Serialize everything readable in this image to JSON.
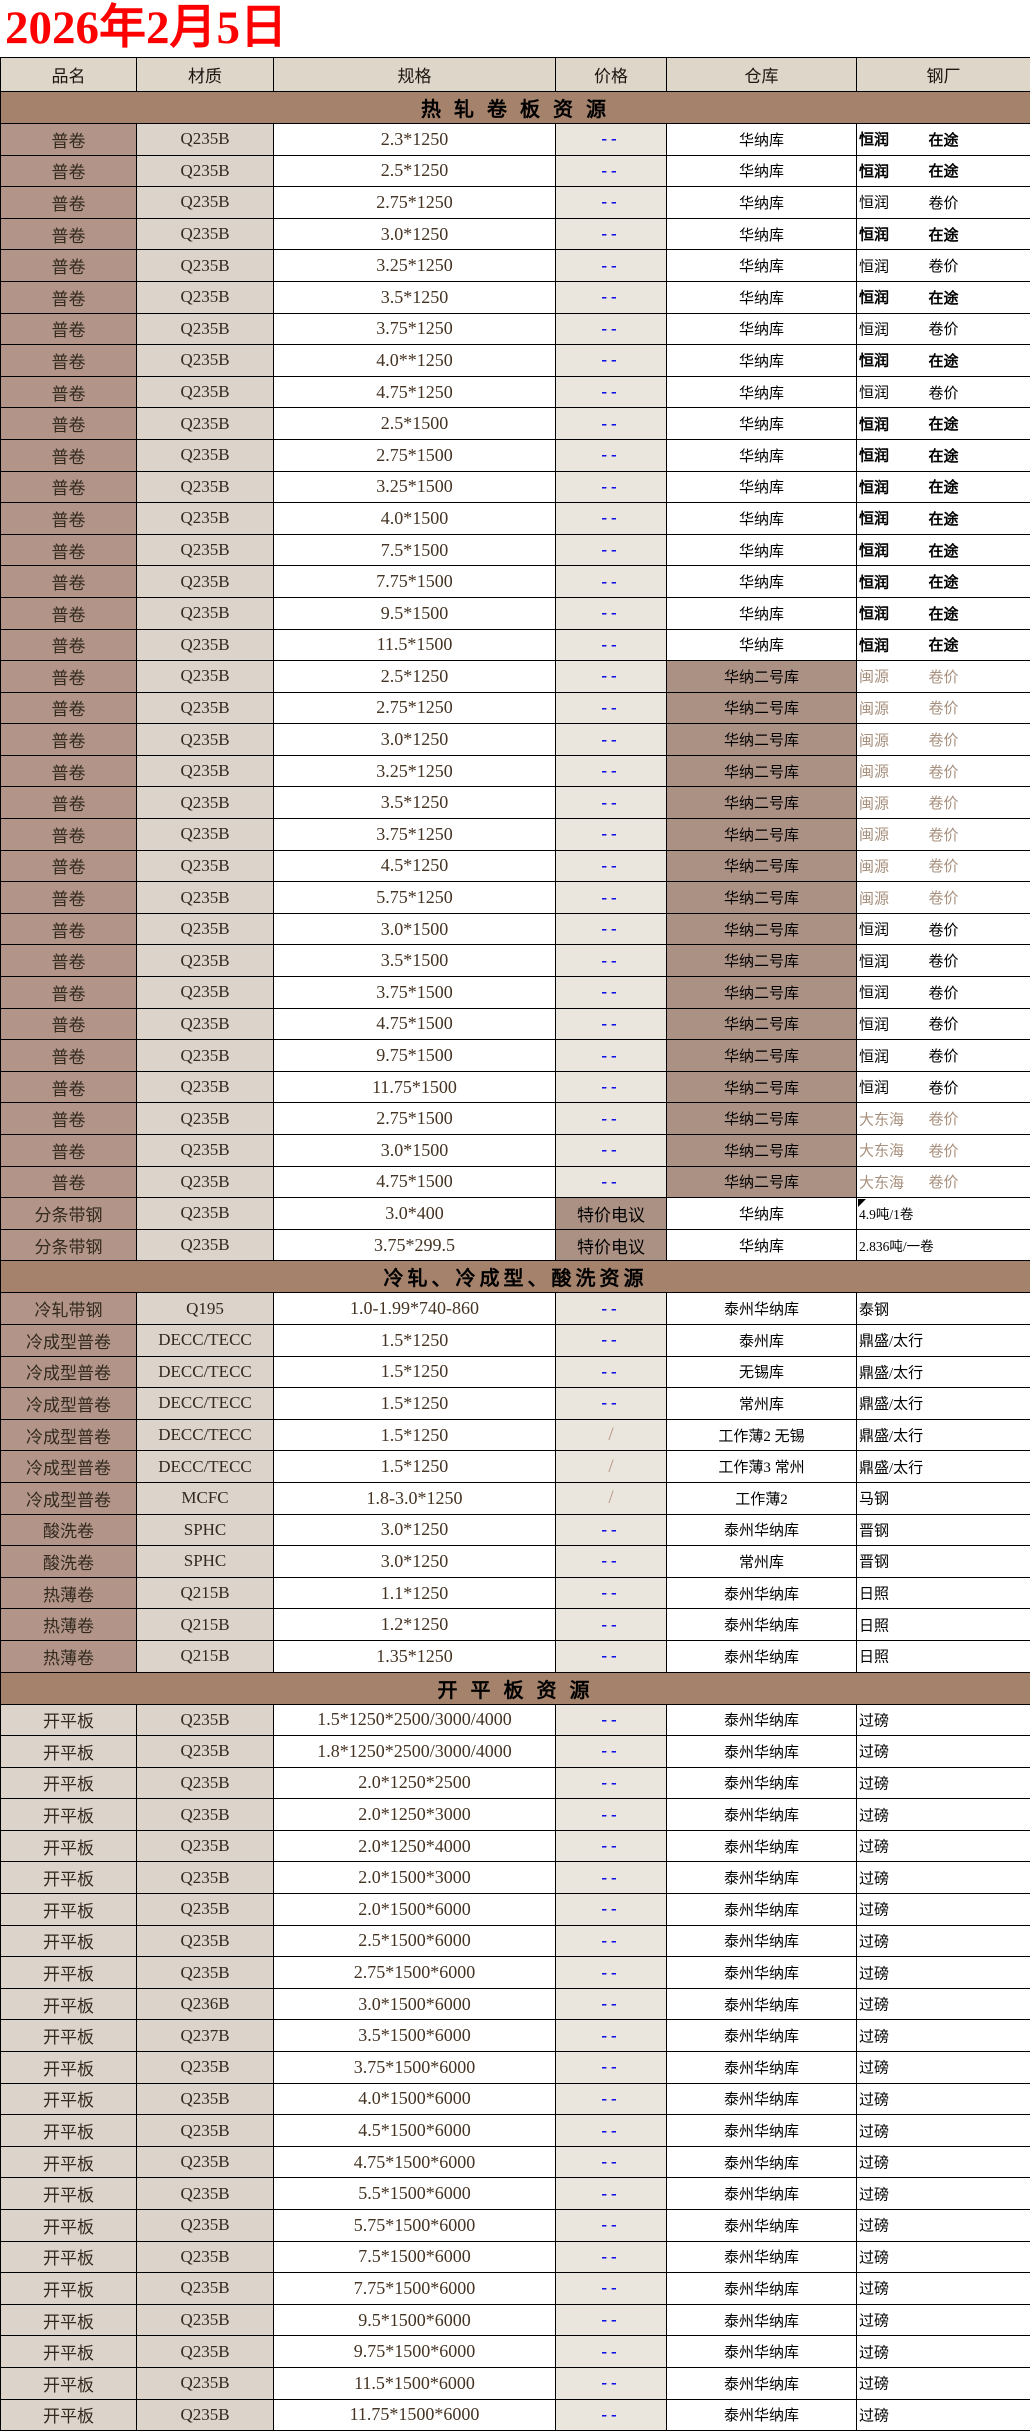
{
  "title": "2026年2月5日",
  "colors": {
    "title_red": "#fe0000",
    "dash_blue": "#0000e6",
    "section_header_bg": "#a5826b",
    "column_header_bg": "#ded6c9",
    "product_cell_brown": "#b29588",
    "material_cell_beige": "#dcd3ca",
    "price_cell_beige": "#eae6dd",
    "warehouse_dark_brown": "#ab9183",
    "light_mill_text": "#a8907e"
  },
  "columns": [
    "品名",
    "材质",
    "规格",
    "价格",
    "仓库",
    "钢厂"
  ],
  "sections": [
    {
      "header": "热 轧 卷 板 资 源",
      "rows": [
        {
          "name": "普卷",
          "grade": "Q235B",
          "spec": "2.3*1250",
          "price": "--",
          "wh": "华纳库",
          "mill": "恒润",
          "tag": "在途",
          "bold": true
        },
        {
          "name": "普卷",
          "grade": "Q235B",
          "spec": "2.5*1250",
          "price": "--",
          "wh": "华纳库",
          "mill": "恒润",
          "tag": "在途",
          "bold": true
        },
        {
          "name": "普卷",
          "grade": "Q235B",
          "spec": "2.75*1250",
          "price": "--",
          "wh": "华纳库",
          "mill": "恒润",
          "tag": "卷价"
        },
        {
          "name": "普卷",
          "grade": "Q235B",
          "spec": "3.0*1250",
          "price": "--",
          "wh": "华纳库",
          "mill": "恒润",
          "tag": "在途",
          "bold": true
        },
        {
          "name": "普卷",
          "grade": "Q235B",
          "spec": "3.25*1250",
          "price": "--",
          "wh": "华纳库",
          "mill": "恒润",
          "tag": "卷价"
        },
        {
          "name": "普卷",
          "grade": "Q235B",
          "spec": "3.5*1250",
          "price": "--",
          "wh": "华纳库",
          "mill": "恒润",
          "tag": "在途",
          "bold": true
        },
        {
          "name": "普卷",
          "grade": "Q235B",
          "spec": "3.75*1250",
          "price": "--",
          "wh": "华纳库",
          "mill": "恒润",
          "tag": "卷价"
        },
        {
          "name": "普卷",
          "grade": "Q235B",
          "spec": "4.0**1250",
          "price": "--",
          "wh": "华纳库",
          "mill": "恒润",
          "tag": "在途",
          "bold": true
        },
        {
          "name": "普卷",
          "grade": "Q235B",
          "spec": "4.75*1250",
          "price": "--",
          "wh": "华纳库",
          "mill": "恒润",
          "tag": "卷价"
        },
        {
          "name": "普卷",
          "grade": "Q235B",
          "spec": "2.5*1500",
          "price": "--",
          "wh": "华纳库",
          "mill": "恒润",
          "tag": "在途",
          "bold": true
        },
        {
          "name": "普卷",
          "grade": "Q235B",
          "spec": "2.75*1500",
          "price": "--",
          "wh": "华纳库",
          "mill": "恒润",
          "tag": "在途",
          "bold": true
        },
        {
          "name": "普卷",
          "grade": "Q235B",
          "spec": "3.25*1500",
          "price": "--",
          "wh": "华纳库",
          "mill": "恒润",
          "tag": "在途",
          "bold": true
        },
        {
          "name": "普卷",
          "grade": "Q235B",
          "spec": "4.0*1500",
          "price": "--",
          "wh": "华纳库",
          "mill": "恒润",
          "tag": "在途",
          "bold": true
        },
        {
          "name": "普卷",
          "grade": "Q235B",
          "spec": "7.5*1500",
          "price": "--",
          "wh": "华纳库",
          "mill": "恒润",
          "tag": "在途",
          "bold": true
        },
        {
          "name": "普卷",
          "grade": "Q235B",
          "spec": "7.75*1500",
          "price": "--",
          "wh": "华纳库",
          "mill": "恒润",
          "tag": "在途",
          "bold": true
        },
        {
          "name": "普卷",
          "grade": "Q235B",
          "spec": "9.5*1500",
          "price": "--",
          "wh": "华纳库",
          "mill": "恒润",
          "tag": "在途",
          "bold": true
        },
        {
          "name": "普卷",
          "grade": "Q235B",
          "spec": "11.5*1500",
          "price": "--",
          "wh": "华纳库",
          "mill": "恒润",
          "tag": "在途",
          "bold": true
        },
        {
          "name": "普卷",
          "grade": "Q235B",
          "spec": "2.5*1250",
          "price": "--",
          "wh": "华纳二号库",
          "dark": true,
          "mill": "闽源",
          "tag": "卷价",
          "light": true
        },
        {
          "name": "普卷",
          "grade": "Q235B",
          "spec": "2.75*1250",
          "price": "--",
          "wh": "华纳二号库",
          "dark": true,
          "mill": "闽源",
          "tag": "卷价",
          "light": true
        },
        {
          "name": "普卷",
          "grade": "Q235B",
          "spec": "3.0*1250",
          "price": "--",
          "wh": "华纳二号库",
          "dark": true,
          "mill": "闽源",
          "tag": "卷价",
          "light": true
        },
        {
          "name": "普卷",
          "grade": "Q235B",
          "spec": "3.25*1250",
          "price": "--",
          "wh": "华纳二号库",
          "dark": true,
          "mill": "闽源",
          "tag": "卷价",
          "light": true
        },
        {
          "name": "普卷",
          "grade": "Q235B",
          "spec": "3.5*1250",
          "price": "--",
          "wh": "华纳二号库",
          "dark": true,
          "mill": "闽源",
          "tag": "卷价",
          "light": true
        },
        {
          "name": "普卷",
          "grade": "Q235B",
          "spec": "3.75*1250",
          "price": "--",
          "wh": "华纳二号库",
          "dark": true,
          "mill": "闽源",
          "tag": "卷价",
          "light": true
        },
        {
          "name": "普卷",
          "grade": "Q235B",
          "spec": "4.5*1250",
          "price": "--",
          "wh": "华纳二号库",
          "dark": true,
          "mill": "闽源",
          "tag": "卷价",
          "light": true
        },
        {
          "name": "普卷",
          "grade": "Q235B",
          "spec": "5.75*1250",
          "price": "--",
          "wh": "华纳二号库",
          "dark": true,
          "mill": "闽源",
          "tag": "卷价",
          "light": true
        },
        {
          "name": "普卷",
          "grade": "Q235B",
          "spec": "3.0*1500",
          "price": "--",
          "wh": "华纳二号库",
          "dark": true,
          "mill": "恒润",
          "tag": "卷价"
        },
        {
          "name": "普卷",
          "grade": "Q235B",
          "spec": "3.5*1500",
          "price": "--",
          "wh": "华纳二号库",
          "dark": true,
          "mill": "恒润",
          "tag": "卷价"
        },
        {
          "name": "普卷",
          "grade": "Q235B",
          "spec": "3.75*1500",
          "price": "--",
          "wh": "华纳二号库",
          "dark": true,
          "mill": "恒润",
          "tag": "卷价"
        },
        {
          "name": "普卷",
          "grade": "Q235B",
          "spec": "4.75*1500",
          "price": "--",
          "wh": "华纳二号库",
          "dark": true,
          "mill": "恒润",
          "tag": "卷价"
        },
        {
          "name": "普卷",
          "grade": "Q235B",
          "spec": "9.75*1500",
          "price": "--",
          "wh": "华纳二号库",
          "dark": true,
          "mill": "恒润",
          "tag": "卷价"
        },
        {
          "name": "普卷",
          "grade": "Q235B",
          "spec": "11.75*1500",
          "price": "--",
          "wh": "华纳二号库",
          "dark": true,
          "mill": "恒润",
          "tag": "卷价"
        },
        {
          "name": "普卷",
          "grade": "Q235B",
          "spec": "2.75*1500",
          "price": "--",
          "wh": "华纳二号库",
          "dark": true,
          "mill": "大东海",
          "tag": "卷价",
          "light": true
        },
        {
          "name": "普卷",
          "grade": "Q235B",
          "spec": "3.0*1500",
          "price": "--",
          "wh": "华纳二号库",
          "dark": true,
          "mill": "大东海",
          "tag": "卷价",
          "light": true
        },
        {
          "name": "普卷",
          "grade": "Q235B",
          "spec": "4.75*1500",
          "price": "--",
          "wh": "华纳二号库",
          "dark": true,
          "mill": "大东海",
          "tag": "卷价",
          "light": true
        },
        {
          "name": "分条带钢",
          "grade": "Q235B",
          "spec": "3.0*400",
          "price": "特价电议",
          "wh": "华纳库",
          "mill": "4.9吨/1卷",
          "small": true,
          "corner": true
        },
        {
          "name": "分条带钢",
          "grade": "Q235B",
          "spec": "3.75*299.5",
          "price": "特价电议",
          "wh": "华纳库",
          "mill": "2.836吨/一卷",
          "small": true
        }
      ]
    },
    {
      "header": "冷轧、冷成型、酸洗资源",
      "rows": [
        {
          "name": "冷轧带钢",
          "grade": "Q195",
          "spec": "1.0-1.99*740-860",
          "price": "--",
          "wh": "泰州华纳库",
          "mill": "泰钢"
        },
        {
          "name": "冷成型普卷",
          "grade": "DECC/TECC",
          "spec": "1.5*1250",
          "price": "--",
          "wh": "泰州库",
          "mill": "鼎盛/太行"
        },
        {
          "name": "冷成型普卷",
          "grade": "DECC/TECC",
          "spec": "1.5*1250",
          "price": "--",
          "wh": "无锡库",
          "mill": "鼎盛/太行"
        },
        {
          "name": "冷成型普卷",
          "grade": "DECC/TECC",
          "spec": "1.5*1250",
          "price": "--",
          "wh": "常州库",
          "mill": "鼎盛/太行"
        },
        {
          "name": "冷成型普卷",
          "grade": "DECC/TECC",
          "spec": "1.5*1250",
          "price": "/",
          "wh": "工作薄2 无锡",
          "mill": "鼎盛/太行"
        },
        {
          "name": "冷成型普卷",
          "grade": "DECC/TECC",
          "spec": "1.5*1250",
          "price": "/",
          "wh": "工作薄3 常州",
          "mill": "鼎盛/太行"
        },
        {
          "name": "冷成型普卷",
          "grade": "MCFC",
          "spec": "1.8-3.0*1250",
          "price": "/",
          "wh": "工作薄2",
          "mill": "马钢"
        },
        {
          "name": "酸洗卷",
          "grade": "SPHC",
          "spec": "3.0*1250",
          "price": "--",
          "wh": "泰州华纳库",
          "mill": "晋钢"
        },
        {
          "name": "酸洗卷",
          "grade": "SPHC",
          "spec": "3.0*1250",
          "price": "--",
          "wh": "常州库",
          "mill": "晋钢"
        },
        {
          "name": "热薄卷",
          "grade": "Q215B",
          "spec": "1.1*1250",
          "price": "--",
          "wh": "泰州华纳库",
          "mill": "日照"
        },
        {
          "name": "热薄卷",
          "grade": "Q215B",
          "spec": "1.2*1250",
          "price": "--",
          "wh": "泰州华纳库",
          "mill": "日照"
        },
        {
          "name": "热薄卷",
          "grade": "Q215B",
          "spec": "1.35*1250",
          "price": "--",
          "wh": "泰州华纳库",
          "mill": "日照"
        }
      ]
    },
    {
      "header": "开 平 板 资 源",
      "light_name": true,
      "rows": [
        {
          "name": "开平板",
          "grade": "Q235B",
          "spec": "1.5*1250*2500/3000/4000",
          "price": "--",
          "wh": "泰州华纳库",
          "mill": "过磅"
        },
        {
          "name": "开平板",
          "grade": "Q235B",
          "spec": "1.8*1250*2500/3000/4000",
          "price": "--",
          "wh": "泰州华纳库",
          "mill": "过磅"
        },
        {
          "name": "开平板",
          "grade": "Q235B",
          "spec": "2.0*1250*2500",
          "price": "--",
          "wh": "泰州华纳库",
          "mill": "过磅"
        },
        {
          "name": "开平板",
          "grade": "Q235B",
          "spec": "2.0*1250*3000",
          "price": "--",
          "wh": "泰州华纳库",
          "mill": "过磅"
        },
        {
          "name": "开平板",
          "grade": "Q235B",
          "spec": "2.0*1250*4000",
          "price": "--",
          "wh": "泰州华纳库",
          "mill": "过磅"
        },
        {
          "name": "开平板",
          "grade": "Q235B",
          "spec": "2.0*1500*3000",
          "price": "--",
          "wh": "泰州华纳库",
          "mill": "过磅"
        },
        {
          "name": "开平板",
          "grade": "Q235B",
          "spec": "2.0*1500*6000",
          "price": "--",
          "wh": "泰州华纳库",
          "mill": "过磅"
        },
        {
          "name": "开平板",
          "grade": "Q235B",
          "spec": "2.5*1500*6000",
          "price": "--",
          "wh": "泰州华纳库",
          "mill": "过磅"
        },
        {
          "name": "开平板",
          "grade": "Q235B",
          "spec": "2.75*1500*6000",
          "price": "--",
          "wh": "泰州华纳库",
          "mill": "过磅"
        },
        {
          "name": "开平板",
          "grade": "Q236B",
          "spec": "3.0*1500*6000",
          "price": "--",
          "wh": "泰州华纳库",
          "mill": "过磅"
        },
        {
          "name": "开平板",
          "grade": "Q237B",
          "spec": "3.5*1500*6000",
          "price": "--",
          "wh": "泰州华纳库",
          "mill": "过磅"
        },
        {
          "name": "开平板",
          "grade": "Q235B",
          "spec": "3.75*1500*6000",
          "price": "--",
          "wh": "泰州华纳库",
          "mill": "过磅"
        },
        {
          "name": "开平板",
          "grade": "Q235B",
          "spec": "4.0*1500*6000",
          "price": "--",
          "wh": "泰州华纳库",
          "mill": "过磅"
        },
        {
          "name": "开平板",
          "grade": "Q235B",
          "spec": "4.5*1500*6000",
          "price": "--",
          "wh": "泰州华纳库",
          "mill": "过磅"
        },
        {
          "name": "开平板",
          "grade": "Q235B",
          "spec": "4.75*1500*6000",
          "price": "--",
          "wh": "泰州华纳库",
          "mill": "过磅"
        },
        {
          "name": "开平板",
          "grade": "Q235B",
          "spec": "5.5*1500*6000",
          "price": "--",
          "wh": "泰州华纳库",
          "mill": "过磅"
        },
        {
          "name": "开平板",
          "grade": "Q235B",
          "spec": "5.75*1500*6000",
          "price": "--",
          "wh": "泰州华纳库",
          "mill": "过磅"
        },
        {
          "name": "开平板",
          "grade": "Q235B",
          "spec": "7.5*1500*6000",
          "price": "--",
          "wh": "泰州华纳库",
          "mill": "过磅"
        },
        {
          "name": "开平板",
          "grade": "Q235B",
          "spec": "7.75*1500*6000",
          "price": "--",
          "wh": "泰州华纳库",
          "mill": "过磅"
        },
        {
          "name": "开平板",
          "grade": "Q235B",
          "spec": "9.5*1500*6000",
          "price": "--",
          "wh": "泰州华纳库",
          "mill": "过磅"
        },
        {
          "name": "开平板",
          "grade": "Q235B",
          "spec": "9.75*1500*6000",
          "price": "--",
          "wh": "泰州华纳库",
          "mill": "过磅"
        },
        {
          "name": "开平板",
          "grade": "Q235B",
          "spec": "11.5*1500*6000",
          "price": "--",
          "wh": "泰州华纳库",
          "mill": "过磅"
        },
        {
          "name": "开平板",
          "grade": "Q235B",
          "spec": "11.75*1500*6000",
          "price": "--",
          "wh": "泰州华纳库",
          "mill": "过磅"
        }
      ]
    }
  ]
}
